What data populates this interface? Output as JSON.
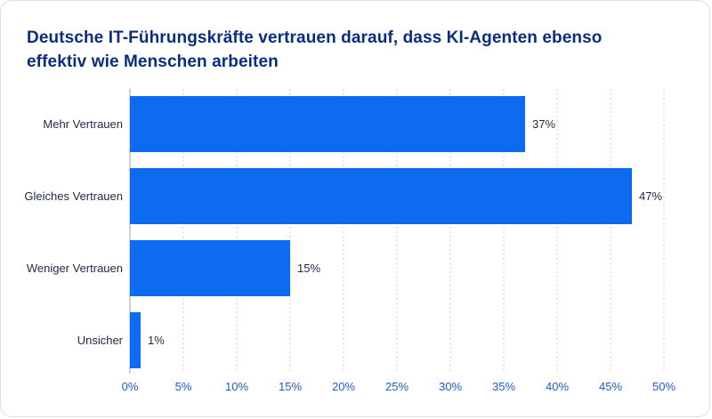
{
  "chart_data": {
    "type": "bar",
    "orientation": "horizontal",
    "title": "Deutsche IT-Führungskräfte vertrauen darauf, dass KI-Agenten ebenso effektiv wie Menschen arbeiten",
    "categories": [
      "Mehr Vertrauen",
      "Gleiches Vertrauen",
      "Weniger Vertrauen",
      "Unsicher"
    ],
    "values": [
      37,
      47,
      15,
      1
    ],
    "value_labels": [
      "37%",
      "47%",
      "15%",
      "1%"
    ],
    "xlim": [
      0,
      50
    ],
    "x_ticks": [
      0,
      5,
      10,
      15,
      20,
      25,
      30,
      35,
      40,
      45,
      50
    ],
    "x_tick_labels": [
      "0%",
      "5%",
      "10%",
      "15%",
      "20%",
      "25%",
      "30%",
      "35%",
      "40%",
      "45%",
      "50%"
    ],
    "grid": "vertical dashed",
    "bar_color": "#0d6bf2"
  }
}
